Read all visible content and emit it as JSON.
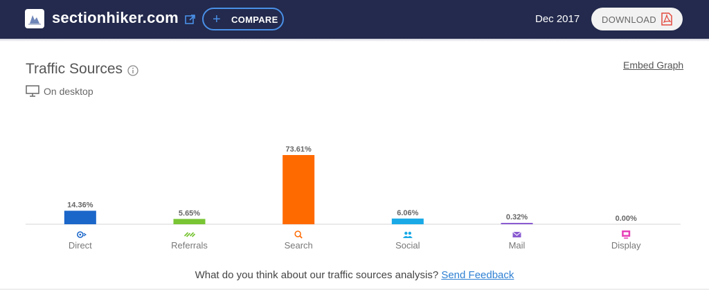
{
  "header": {
    "site_name": "sectionhiker.com",
    "compare_label": "COMPARE",
    "date": "Dec 2017",
    "download_label": "DOWNLOAD"
  },
  "card": {
    "title": "Traffic Sources",
    "embed_label": "Embed Graph",
    "device_label": "On desktop"
  },
  "footer": {
    "question": "What do you think about our traffic sources analysis?",
    "feedback_link": "Send Feedback"
  },
  "colors": {
    "header_bg": "#232a4d",
    "accent_blue": "#4a90e8",
    "link_blue": "#2d7fd3"
  },
  "chart_data": {
    "type": "bar",
    "categories": [
      "Direct",
      "Referrals",
      "Search",
      "Social",
      "Mail",
      "Display"
    ],
    "values": [
      14.36,
      5.65,
      73.61,
      6.06,
      0.32,
      0.0
    ],
    "value_labels": [
      "14.36%",
      "5.65%",
      "73.61%",
      "6.06%",
      "0.32%",
      "0.00%"
    ],
    "colors": [
      "#1b66c9",
      "#79c534",
      "#ff6a00",
      "#19a9e6",
      "#8a5bd1",
      "#e63fb8"
    ],
    "icons": [
      "direct-icon",
      "referrals-icon",
      "search-icon",
      "social-icon",
      "mail-icon",
      "display-icon"
    ],
    "ylim": [
      0,
      73.61
    ],
    "grid": false
  }
}
